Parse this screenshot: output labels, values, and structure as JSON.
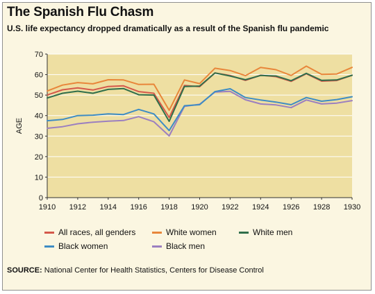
{
  "header": {
    "title": "The Spanish Flu Chasm",
    "subtitle": "U.S. life expectancy dropped dramatically as a result of the Spanish flu pandemic"
  },
  "source": {
    "label": "SOURCE:",
    "text": " National Center for Health Statistics, Centers for Disease Control"
  },
  "colors": {
    "plot_background": "#eedfa2",
    "frame_background": "#fbf6e1",
    "gridline": "#ffffff"
  },
  "chart_data": {
    "type": "line",
    "title": "The Spanish Flu Chasm",
    "subtitle": "U.S. life expectancy dropped dramatically as a result of the Spanish flu pandemic",
    "xlabel": "",
    "ylabel": "AGE",
    "xlim": [
      1910,
      1930
    ],
    "ylim": [
      0,
      70
    ],
    "xticks": [
      1910,
      1912,
      1914,
      1916,
      1918,
      1920,
      1922,
      1924,
      1926,
      1928,
      1930
    ],
    "yticks": [
      0,
      10,
      20,
      30,
      40,
      50,
      60,
      70
    ],
    "grid": true,
    "legend_position": "bottom",
    "x": [
      1910,
      1911,
      1912,
      1913,
      1914,
      1915,
      1916,
      1917,
      1918,
      1919,
      1920,
      1921,
      1922,
      1923,
      1924,
      1925,
      1926,
      1927,
      1928,
      1929,
      1930
    ],
    "series": [
      {
        "name": "All races, all genders",
        "color": "#d4584a",
        "values": [
          50.0,
          52.6,
          53.5,
          52.5,
          54.2,
          54.5,
          51.7,
          50.9,
          39.1,
          54.7,
          54.1,
          60.8,
          59.6,
          57.2,
          59.7,
          59.0,
          56.7,
          60.4,
          56.8,
          57.1,
          59.7
        ]
      },
      {
        "name": "White women",
        "color": "#e8863a",
        "values": [
          52.0,
          54.9,
          56.1,
          55.5,
          57.5,
          57.4,
          55.2,
          55.3,
          42.6,
          57.4,
          55.6,
          63.1,
          62.0,
          59.5,
          63.5,
          62.4,
          59.6,
          64.1,
          60.1,
          60.3,
          63.5
        ]
      },
      {
        "name": "White men",
        "color": "#2f6e4b",
        "values": [
          48.6,
          50.9,
          51.9,
          50.9,
          52.8,
          53.2,
          50.2,
          50.0,
          37.2,
          54.2,
          54.4,
          60.8,
          59.3,
          57.5,
          59.6,
          59.3,
          57.0,
          60.6,
          57.2,
          57.4,
          59.7
        ]
      },
      {
        "name": "Black women",
        "color": "#3d8cc4",
        "values": [
          37.5,
          38.1,
          40.0,
          40.2,
          40.8,
          40.5,
          43.0,
          40.8,
          32.7,
          44.8,
          45.3,
          51.7,
          53.1,
          48.8,
          47.6,
          46.6,
          45.3,
          48.8,
          47.0,
          47.8,
          49.2
        ]
      },
      {
        "name": "Black men",
        "color": "#9b7fc0",
        "values": [
          33.8,
          34.6,
          36.0,
          36.8,
          37.3,
          37.6,
          39.5,
          37.0,
          30.1,
          44.5,
          45.5,
          51.5,
          51.8,
          47.7,
          45.7,
          45.2,
          43.9,
          47.6,
          45.7,
          46.1,
          47.3
        ]
      }
    ]
  }
}
